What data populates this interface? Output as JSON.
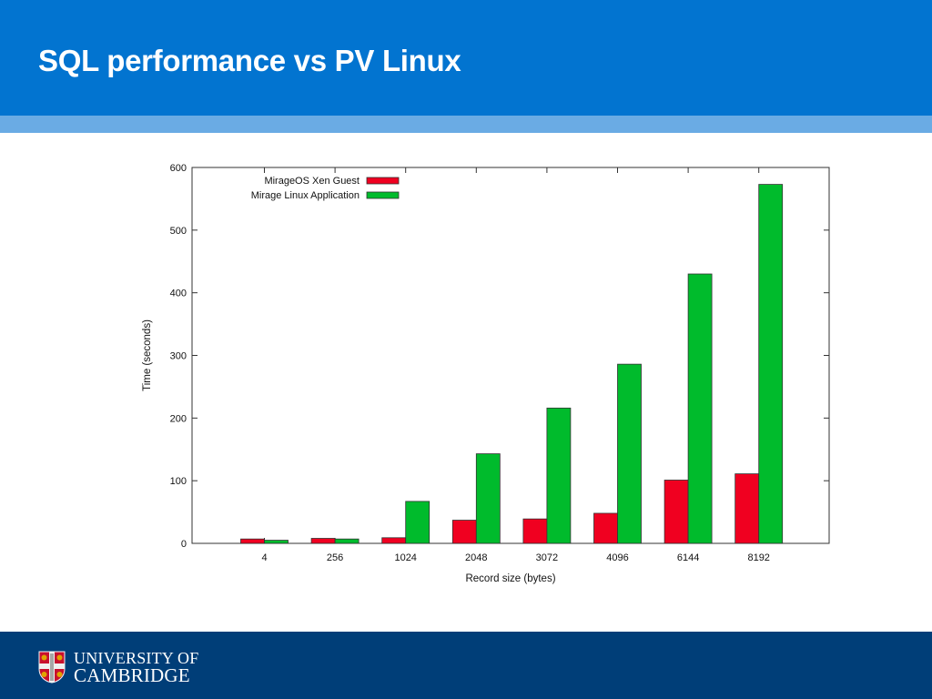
{
  "slide": {
    "title": "SQL performance vs PV Linux",
    "footer_logo": {
      "line1": "UNIVERSITY OF",
      "line2": "CAMBRIDGE",
      "icon": "university-crest-icon"
    },
    "colors": {
      "header": "#0274d0",
      "stripe": "#6aabe4",
      "footer": "#003e78"
    }
  },
  "chart_data": {
    "type": "bar",
    "title": "",
    "xlabel": "Record size (bytes)",
    "ylabel": "Time (seconds)",
    "categories": [
      "4",
      "256",
      "1024",
      "2048",
      "3072",
      "4096",
      "6144",
      "8192"
    ],
    "ylim": [
      0,
      600
    ],
    "yticks": [
      0,
      100,
      200,
      300,
      400,
      500,
      600
    ],
    "grid": false,
    "legend_position": "top-left",
    "series": [
      {
        "name": "MirageOS Xen Guest",
        "color": "#f00020",
        "values": [
          7,
          8,
          9,
          37,
          39,
          48,
          101,
          111
        ]
      },
      {
        "name": "Mirage Linux Application",
        "color": "#00bb2c",
        "values": [
          5,
          7,
          67,
          143,
          216,
          286,
          430,
          573
        ]
      }
    ]
  }
}
